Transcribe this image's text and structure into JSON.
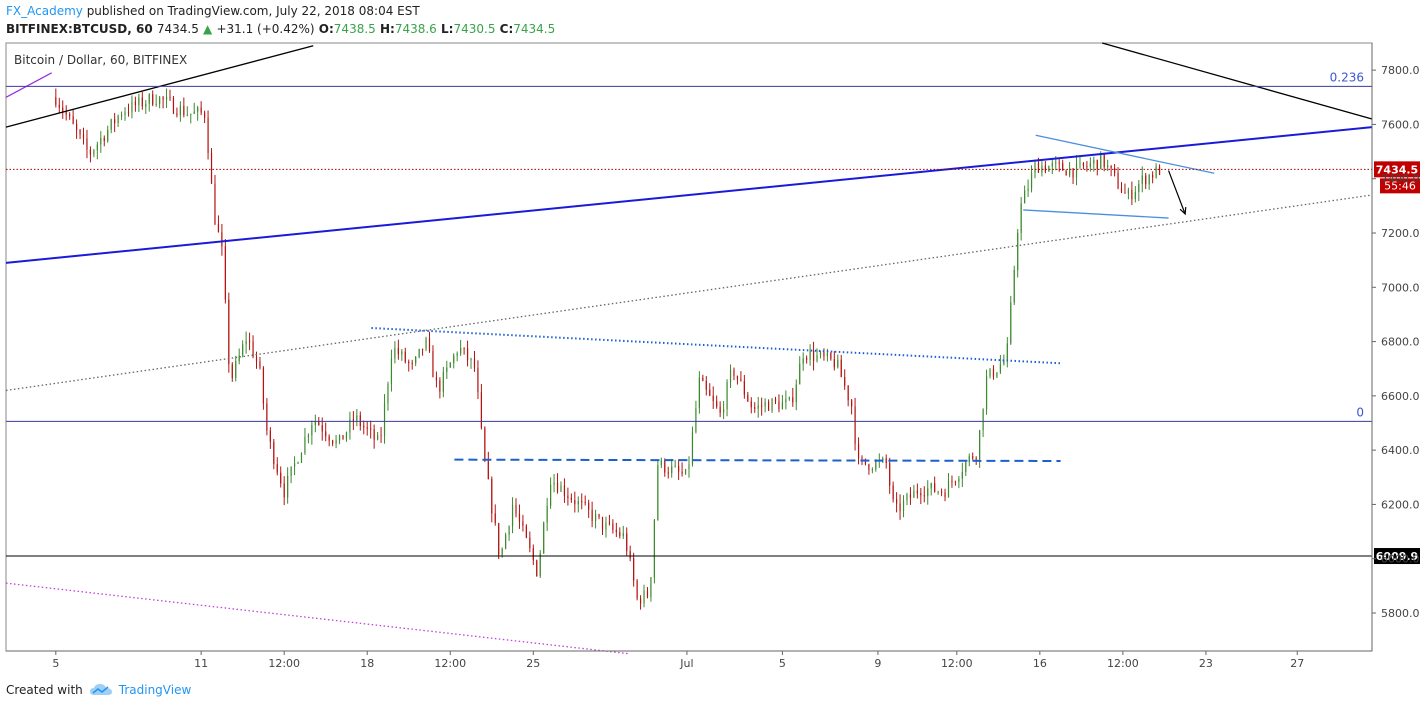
{
  "header": {
    "author": "FX_Academy",
    "published": " published on TradingView.com, July 22, 2018 08:04 EST",
    "symbol": "BITFINEX:BTCUSD, 60",
    "last": "7434.5",
    "change_arrow": "▲",
    "change": "+31.1 (+0.42%)",
    "o_label": "O:",
    "o": "7438.5",
    "h_label": "H:",
    "h": "7438.6",
    "l_label": "L:",
    "l": "7430.5",
    "c_label": "C:",
    "c": "7434.5"
  },
  "footer": {
    "created_with": "Created with",
    "brand": "TradingView",
    "logo_icon": "tradingview-cloud-icon"
  },
  "colors": {
    "up": "#3c8a2e",
    "down": "#b4130f",
    "blue_line": "#1a1adb",
    "fib_line": "#3a3aa0",
    "price_label_bg": "#c00000",
    "support_bg": "#000000"
  },
  "chart_data": {
    "type": "candlestick",
    "title": "Bitcoin / Dollar, 60, BITFINEX",
    "x_tick_labels": [
      "5",
      "11",
      "12:00",
      "18",
      "12:00",
      "25",
      "Jul",
      "5",
      "9",
      "12:00",
      "16",
      "12:00",
      "23",
      "27"
    ],
    "y_ticks": [
      5800,
      6000,
      6200,
      6400,
      6600,
      6800,
      7000,
      7200,
      7400,
      7600,
      7800
    ],
    "y_tick_labels": [
      "5800.0",
      "6000.0",
      "6200.0",
      "6400.0",
      "6600.0",
      "6800.0",
      "7000.0",
      "7200.0",
      "7400.0",
      "7600.0",
      "7800.0"
    ],
    "ylim": [
      5660,
      7900
    ],
    "x_range_days": [
      -0.6,
      15.85
    ],
    "last_price": 7434.5,
    "last_price_label": "7434.5",
    "countdown_label": "55:46",
    "horizontal_levels": [
      {
        "price": 7740,
        "label": "0.236",
        "kind": "fib"
      },
      {
        "price": 6506,
        "label": "0",
        "kind": "fib"
      },
      {
        "price": 6009.9,
        "label": "6009.9",
        "kind": "support"
      }
    ],
    "path_anchors": [
      {
        "d": 0.0,
        "p": 7700
      },
      {
        "d": 0.4,
        "p": 7490
      },
      {
        "d": 0.8,
        "p": 7650
      },
      {
        "d": 1.2,
        "p": 7700
      },
      {
        "d": 1.6,
        "p": 7640
      },
      {
        "d": 1.8,
        "p": 7640
      },
      {
        "d": 1.9,
        "p": 7280
      },
      {
        "d": 2.0,
        "p": 7130
      },
      {
        "d": 2.1,
        "p": 6650
      },
      {
        "d": 2.3,
        "p": 6820
      },
      {
        "d": 2.45,
        "p": 6700
      },
      {
        "d": 2.55,
        "p": 6450
      },
      {
        "d": 2.75,
        "p": 6250
      },
      {
        "d": 3.1,
        "p": 6520
      },
      {
        "d": 3.4,
        "p": 6420
      },
      {
        "d": 3.6,
        "p": 6520
      },
      {
        "d": 3.9,
        "p": 6420
      },
      {
        "d": 4.05,
        "p": 6780
      },
      {
        "d": 4.3,
        "p": 6700
      },
      {
        "d": 4.45,
        "p": 6800
      },
      {
        "d": 4.6,
        "p": 6620
      },
      {
        "d": 4.85,
        "p": 6780
      },
      {
        "d": 5.05,
        "p": 6700
      },
      {
        "d": 5.15,
        "p": 6380
      },
      {
        "d": 5.35,
        "p": 6000
      },
      {
        "d": 5.5,
        "p": 6200
      },
      {
        "d": 5.8,
        "p": 5950
      },
      {
        "d": 5.95,
        "p": 6300
      },
      {
        "d": 6.3,
        "p": 6200
      },
      {
        "d": 6.6,
        "p": 6120
      },
      {
        "d": 6.85,
        "p": 6080
      },
      {
        "d": 7.0,
        "p": 5850
      },
      {
        "d": 7.15,
        "p": 5870
      },
      {
        "d": 7.25,
        "p": 6350
      },
      {
        "d": 7.6,
        "p": 6300
      },
      {
        "d": 7.75,
        "p": 6650
      },
      {
        "d": 8.0,
        "p": 6530
      },
      {
        "d": 8.15,
        "p": 6700
      },
      {
        "d": 8.4,
        "p": 6550
      },
      {
        "d": 8.55,
        "p": 6570
      },
      {
        "d": 8.85,
        "p": 6570
      },
      {
        "d": 9.0,
        "p": 6760
      },
      {
        "d": 9.4,
        "p": 6720
      },
      {
        "d": 9.6,
        "p": 6550
      },
      {
        "d": 9.65,
        "p": 6350
      },
      {
        "d": 10.0,
        "p": 6350
      },
      {
        "d": 10.1,
        "p": 6170
      },
      {
        "d": 10.4,
        "p": 6260
      },
      {
        "d": 10.7,
        "p": 6250
      },
      {
        "d": 10.95,
        "p": 6350
      },
      {
        "d": 11.1,
        "p": 6400
      },
      {
        "d": 11.2,
        "p": 6660
      },
      {
        "d": 11.45,
        "p": 6740
      },
      {
        "d": 11.6,
        "p": 7280
      },
      {
        "d": 11.8,
        "p": 7450
      },
      {
        "d": 12.3,
        "p": 7430
      },
      {
        "d": 12.6,
        "p": 7470
      },
      {
        "d": 12.9,
        "p": 7330
      },
      {
        "d": 13.1,
        "p": 7400
      },
      {
        "d": 13.3,
        "p": 7434.5
      }
    ],
    "trend_lines": [
      {
        "style": "solid",
        "color": "#000000",
        "points": [
          [
            -0.6,
            7590
          ],
          [
            3.1,
            7890
          ]
        ]
      },
      {
        "style": "solid",
        "color": "#000000",
        "points": [
          [
            12.6,
            7900
          ],
          [
            15.85,
            7620
          ]
        ]
      },
      {
        "style": "solid",
        "color": "#1a1adb",
        "points": [
          [
            -0.6,
            7090
          ],
          [
            15.85,
            7590
          ]
        ]
      },
      {
        "style": "dotted",
        "color": "#666666",
        "points": [
          [
            -0.6,
            6620
          ],
          [
            15.85,
            7340
          ]
        ]
      },
      {
        "style": "dotted",
        "color": "#1e5fd0",
        "points": [
          [
            3.8,
            6850
          ],
          [
            12.1,
            6720
          ]
        ]
      },
      {
        "style": "dashed",
        "color": "#1e5fd0",
        "points": [
          [
            4.8,
            6365
          ],
          [
            12.1,
            6360
          ]
        ]
      },
      {
        "style": "dotted",
        "color": "#c040e0",
        "points": [
          [
            -0.6,
            5910
          ],
          [
            6.9,
            5650
          ]
        ]
      },
      {
        "style": "solid",
        "color": "#9b30e0",
        "points": [
          [
            -0.6,
            7700
          ],
          [
            -0.05,
            7790
          ]
        ]
      },
      {
        "style": "solid",
        "color": "#4b8fdd",
        "points": [
          [
            11.8,
            7560
          ],
          [
            13.95,
            7420
          ]
        ]
      },
      {
        "style": "solid",
        "color": "#4b8fdd",
        "points": [
          [
            11.65,
            7285
          ],
          [
            13.4,
            7255
          ]
        ]
      }
    ],
    "projection_arrow": {
      "from": [
        13.4,
        7430
      ],
      "to": [
        13.6,
        7270
      ]
    },
    "grid": false,
    "legend": "none"
  }
}
